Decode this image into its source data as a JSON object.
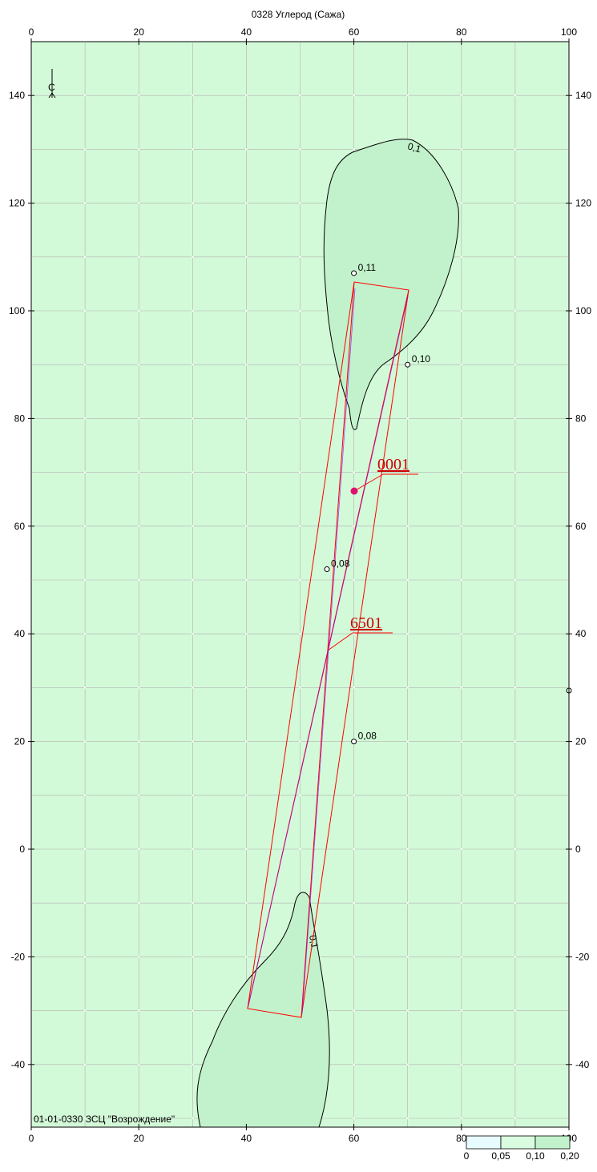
{
  "map": {
    "title": "0328 Углерод (Сажа)",
    "footer": "01-01-0330 ЗСЦ \"Возрождение\"",
    "north_marker": "С",
    "x_ticks": [
      "0",
      "20",
      "40",
      "60",
      "80",
      "100"
    ],
    "y_ticks": [
      "140",
      "120",
      "100",
      "80",
      "60",
      "40",
      "20",
      "0",
      "-20",
      "-40"
    ],
    "colors": {
      "background": "#d3fad8",
      "contour_fill": "#c2f2cc",
      "grid": "#b0b0b0",
      "source_lines": "#ff0000",
      "source_aux": "#8000ff",
      "marker": "#e01070"
    },
    "contours": [
      {
        "id": "top",
        "label": "0,1"
      },
      {
        "id": "bottom",
        "label": "0,1"
      }
    ],
    "points": [
      {
        "label": "0,11",
        "x": 60,
        "y": 107
      },
      {
        "label": "0,10",
        "x": 70,
        "y": 90
      },
      {
        "label": "0,08",
        "x": 55,
        "y": 52
      },
      {
        "label": "0,08",
        "x": 60,
        "y": 20
      }
    ],
    "sources": [
      {
        "label": "0001",
        "x": 60,
        "y": 67
      },
      {
        "label": "6501",
        "x": 55,
        "y": 37
      }
    ],
    "legend": {
      "labels": [
        "0",
        "0,05",
        "0,10",
        "0,20"
      ],
      "colors": [
        "#e8fbfe",
        "#d9fbe0",
        "#c2f2cc"
      ]
    }
  }
}
